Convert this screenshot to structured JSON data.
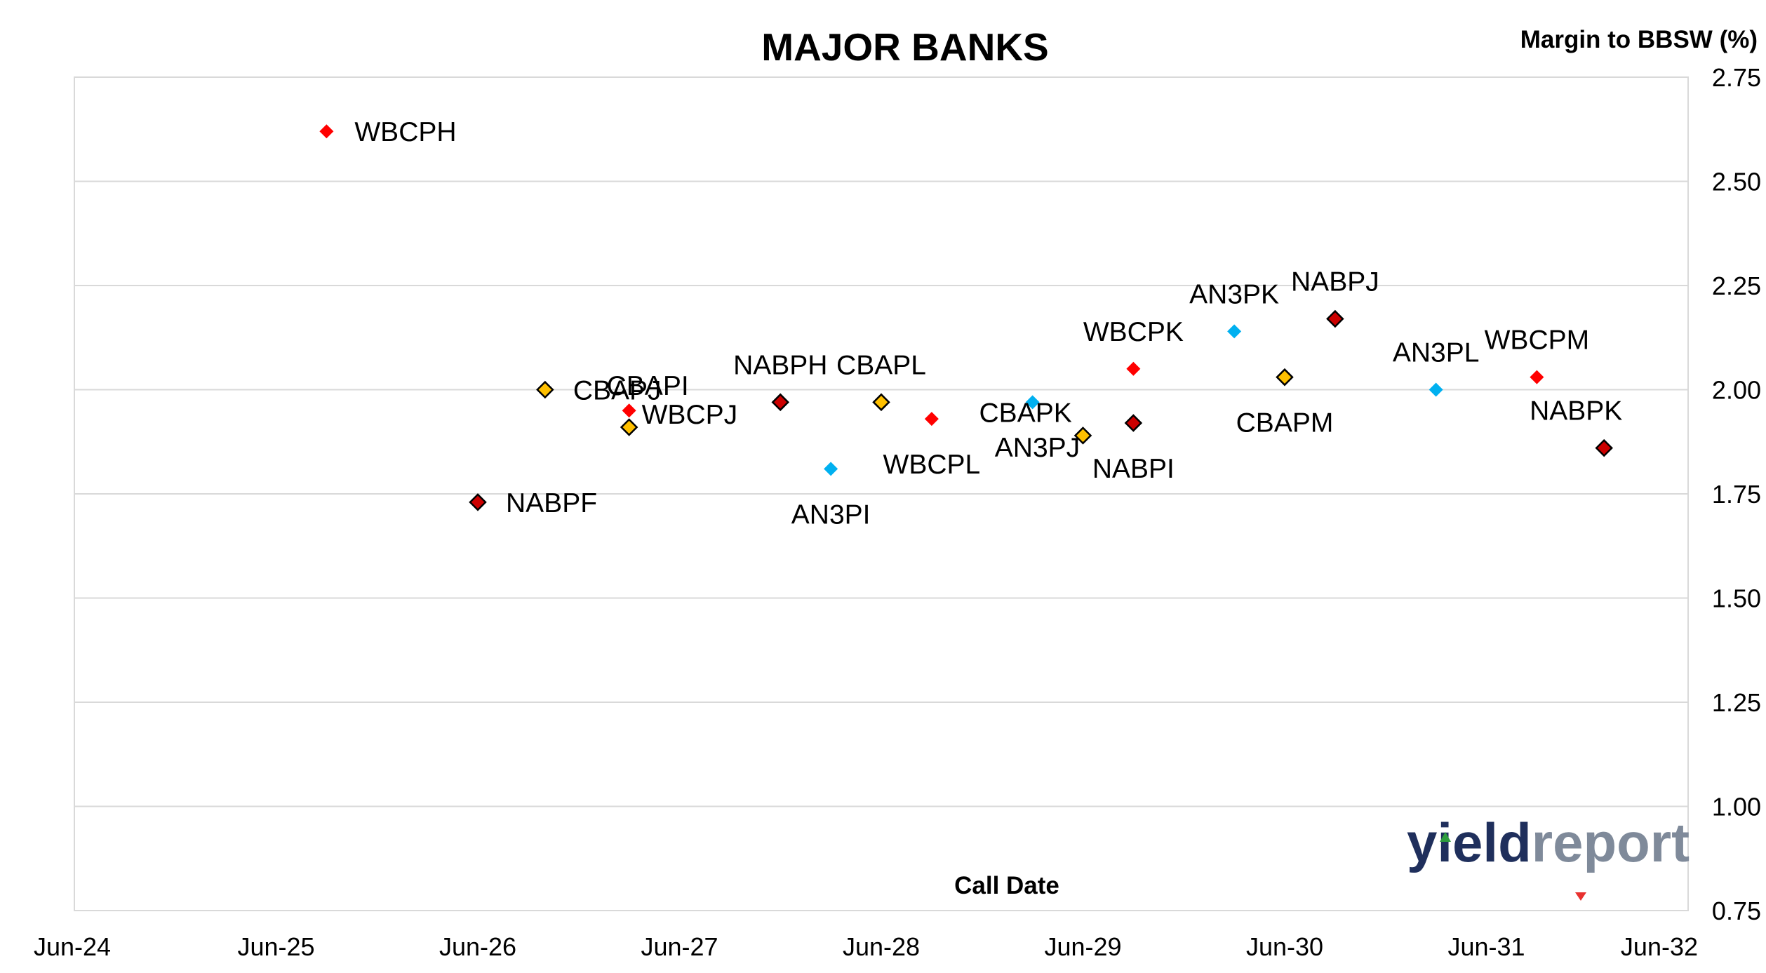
{
  "chart_data": {
    "type": "scatter",
    "title": "MAJOR BANKS",
    "xlabel": "Call Date",
    "ylabel": "Margin to BBSW (%)",
    "xlim": [
      "Jun-24",
      "Jun-32"
    ],
    "ylim": [
      0.75,
      2.75
    ],
    "y_ticks": [
      "0.75",
      "1.00",
      "1.25",
      "1.50",
      "1.75",
      "2.00",
      "2.25",
      "2.50",
      "2.75"
    ],
    "x_ticks": [
      "Jun-24",
      "Jun-25",
      "Jun-26",
      "Jun-27",
      "Jun-28",
      "Jun-29",
      "Jun-30",
      "Jun-31",
      "Jun-32"
    ],
    "grid": true,
    "y_axis_side": "right",
    "colors": {
      "NAB": "#cc0000",
      "WBC": "#ff0000",
      "CBA": "#ffc000",
      "ANZ": "#00b0f0"
    },
    "points": [
      {
        "label": "WBCPH",
        "x": "2025-09",
        "y": 2.62,
        "bank": "WBC"
      },
      {
        "label": "NABPF",
        "x": "2026-06",
        "y": 1.73,
        "bank": "NAB"
      },
      {
        "label": "CBAPJ",
        "x": "2026-10",
        "y": 2.0,
        "bank": "CBA"
      },
      {
        "label": "CBAPI",
        "x": "2027-03",
        "y": 1.95,
        "bank": "WBC"
      },
      {
        "label": "WBCPJ",
        "x": "2027-03",
        "y": 1.91,
        "bank": "CBA"
      },
      {
        "label": "NABPH",
        "x": "2027-12",
        "y": 1.97,
        "bank": "NAB"
      },
      {
        "label": "AN3PI",
        "x": "2028-03",
        "y": 1.81,
        "bank": "ANZ"
      },
      {
        "label": "CBAPL",
        "x": "2028-06",
        "y": 1.97,
        "bank": "CBA"
      },
      {
        "label": "WBCPL",
        "x": "2028-09",
        "y": 1.93,
        "bank": "WBC"
      },
      {
        "label": "CBAPK",
        "x": "2029-03",
        "y": 1.97,
        "bank": "ANZ"
      },
      {
        "label": "AN3PJ",
        "x": "2029-06",
        "y": 1.89,
        "bank": "CBA"
      },
      {
        "label": "WBCPK",
        "x": "2029-09",
        "y": 2.05,
        "bank": "WBC"
      },
      {
        "label": "NABPI",
        "x": "2029-09",
        "y": 1.92,
        "bank": "NAB"
      },
      {
        "label": "AN3PK",
        "x": "2030-03",
        "y": 2.14,
        "bank": "ANZ"
      },
      {
        "label": "CBAPM",
        "x": "2030-06",
        "y": 2.03,
        "bank": "CBA"
      },
      {
        "label": "NABPJ",
        "x": "2030-09",
        "y": 2.17,
        "bank": "NAB"
      },
      {
        "label": "AN3PL",
        "x": "2031-03",
        "y": 2.0,
        "bank": "ANZ"
      },
      {
        "label": "WBCPM",
        "x": "2031-09",
        "y": 2.03,
        "bank": "WBC"
      },
      {
        "label": "NABPK",
        "x": "2032-01",
        "y": 1.86,
        "bank": "NAB"
      }
    ]
  },
  "watermark": {
    "text_dark": "yield",
    "text_light": "report",
    "color_dark": "#1f2f5c",
    "color_light": "#7f8a9a"
  }
}
